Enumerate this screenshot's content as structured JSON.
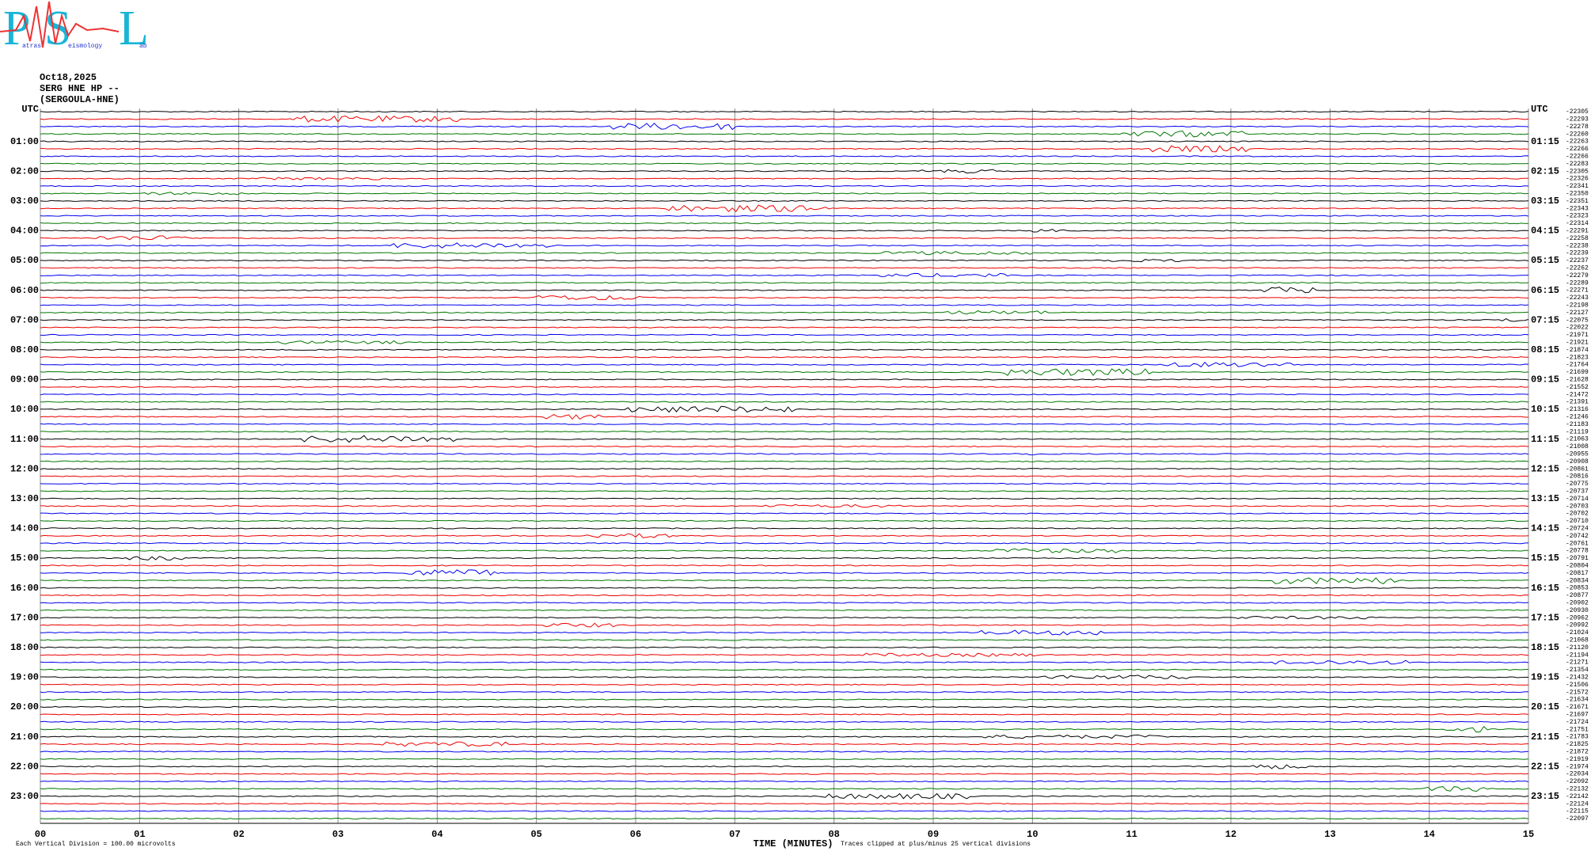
{
  "logo": {
    "letters": [
      "P",
      "S",
      "L"
    ],
    "words": [
      "atras",
      "eismology",
      "ab"
    ]
  },
  "header": {
    "date": "Oct18,2025",
    "station": "SERG HNE HP --",
    "location": "(SERGOULA-HNE)"
  },
  "left_labels": [
    "UTC",
    "01:00",
    "02:00",
    "03:00",
    "04:00",
    "05:00",
    "06:00",
    "07:00",
    "08:00",
    "09:00",
    "10:00",
    "11:00",
    "12:00",
    "13:00",
    "14:00",
    "15:00",
    "16:00",
    "17:00",
    "18:00",
    "19:00",
    "20:00",
    "21:00",
    "22:00",
    "23:00"
  ],
  "right_labels": [
    "UTC",
    "01:15",
    "02:15",
    "03:15",
    "04:15",
    "05:15",
    "06:15",
    "07:15",
    "08:15",
    "09:15",
    "10:15",
    "11:15",
    "12:15",
    "13:15",
    "14:15",
    "15:15",
    "16:15",
    "17:15",
    "18:15",
    "19:15",
    "20:15",
    "21:15",
    "22:15",
    "23:15"
  ],
  "row_offsets": [
    "-22305",
    "-22293",
    "-22278",
    "-22260",
    "-22263",
    "-22266",
    "-22266",
    "-22283",
    "-22305",
    "-22326",
    "-22341",
    "-22350",
    "-22351",
    "-22343",
    "-22323",
    "-22314",
    "-22291",
    "-22258",
    "-22238",
    "-22239",
    "-22237",
    "-22262",
    "-22279",
    "-22289",
    "-22271",
    "-22243",
    "-22198",
    "-22127",
    "-22075",
    "-22022",
    "-21971",
    "-21921",
    "-21874",
    "-21823",
    "-21764",
    "-21699",
    "-21628",
    "-21552",
    "-21472",
    "-21391",
    "-21316",
    "-21246",
    "-21183",
    "-21119",
    "-21063",
    "-21008",
    "-20955",
    "-20908",
    "-20861",
    "-20816",
    "-20775",
    "-20737",
    "-20714",
    "-20703",
    "-20702",
    "-20710",
    "-20724",
    "-20742",
    "-20761",
    "-20778",
    "-20791",
    "-20804",
    "-20817",
    "-20834",
    "-20853",
    "-20877",
    "-20902",
    "-20930",
    "-20962",
    "-20992",
    "-21024",
    "-21068",
    "-21120",
    "-21194",
    "-21271",
    "-21354",
    "-21432",
    "-21506",
    "-21572",
    "-21634",
    "-21671",
    "-21697",
    "-21724",
    "-21751",
    "-21783",
    "-21825",
    "-21872",
    "-21919",
    "-21974",
    "-22034",
    "-22092",
    "-22132",
    "-22142",
    "-22124",
    "-22115",
    "-22097"
  ],
  "x_axis": {
    "ticks": [
      "00",
      "01",
      "02",
      "03",
      "04",
      "05",
      "06",
      "07",
      "08",
      "09",
      "10",
      "11",
      "12",
      "13",
      "14",
      "15"
    ],
    "label": "TIME (MINUTES)"
  },
  "footer": {
    "scale_note": "Each Vertical Division =  100.00 microvolts",
    "clip_note": "Traces clipped at plus/minus 25 vertical divisions"
  }
}
